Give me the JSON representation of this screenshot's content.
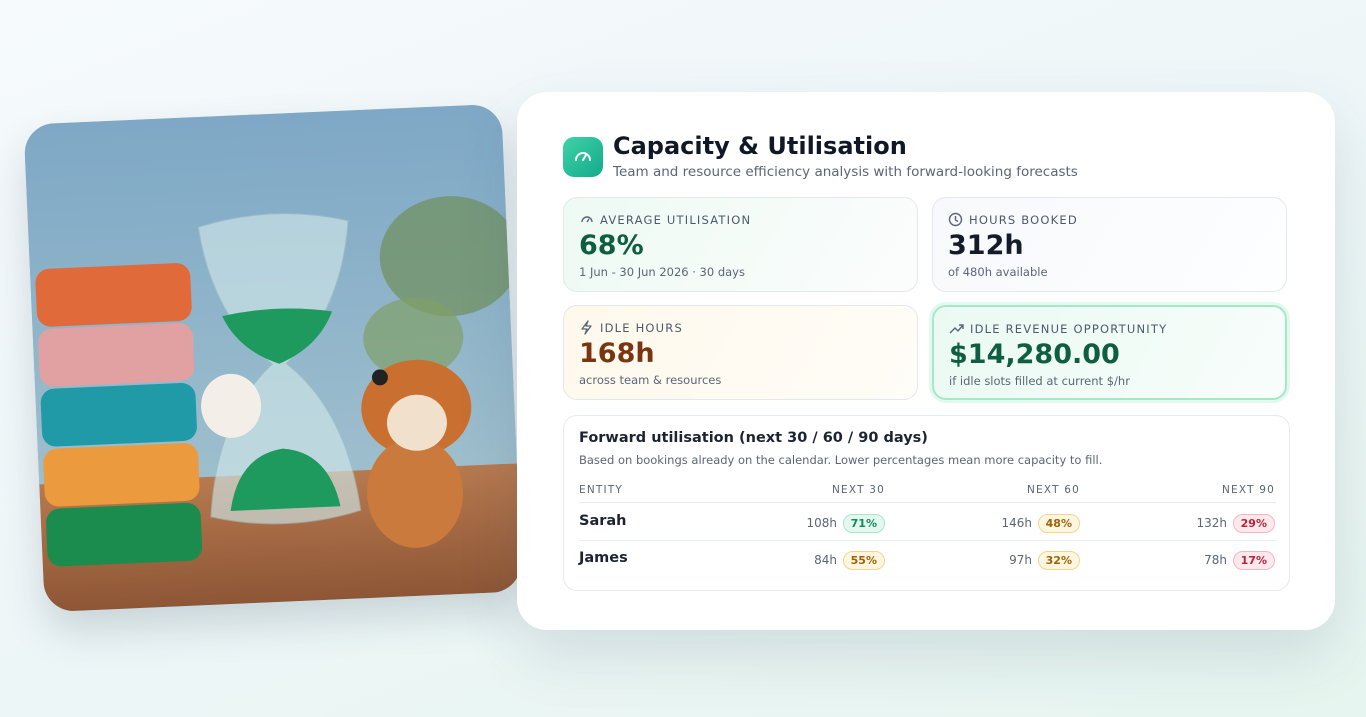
{
  "header": {
    "title": "Capacity & Utilisation",
    "subtitle": "Team and resource efficiency analysis with forward-looking forecasts"
  },
  "stats": [
    {
      "label": "AVERAGE UTILISATION",
      "value": "68%",
      "note": "1 Jun - 30 Jun 2026 · 30 days"
    },
    {
      "label": "HOURS BOOKED",
      "value": "312h",
      "note": "of 480h available"
    },
    {
      "label": "IDLE HOURS",
      "value": "168h",
      "note": "across team & resources"
    },
    {
      "label": "IDLE REVENUE OPPORTUNITY",
      "value": "$14,280.00",
      "note": "if idle slots filled at current $/hr"
    }
  ],
  "forward": {
    "title": "Forward utilisation (next 30 / 60 / 90 days)",
    "subtitle": "Based on bookings already on the calendar. Lower percentages mean more capacity to fill.",
    "columns": [
      "ENTITY",
      "NEXT 30",
      "NEXT 60",
      "NEXT 90"
    ],
    "rows": [
      {
        "entity": "Sarah",
        "cells": [
          {
            "hours": "108h",
            "pct": "71%",
            "tone": "green"
          },
          {
            "hours": "146h",
            "pct": "48%",
            "tone": "amber"
          },
          {
            "hours": "132h",
            "pct": "29%",
            "tone": "red"
          }
        ]
      },
      {
        "entity": "James",
        "cells": [
          {
            "hours": "84h",
            "pct": "55%",
            "tone": "amber"
          },
          {
            "hours": "97h",
            "pct": "32%",
            "tone": "amber"
          },
          {
            "hours": "78h",
            "pct": "17%",
            "tone": "red"
          }
        ]
      }
    ]
  }
}
